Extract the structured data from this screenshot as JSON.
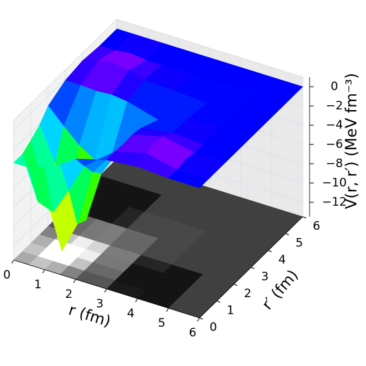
{
  "chart_data": {
    "type": "surface",
    "xlabel": "r (fm)",
    "ylabel": "r′ (fm)",
    "zlabel": "V(r, r′) (MeV fm⁻³)",
    "x": [
      0,
      0.5,
      1,
      1.5,
      2,
      3,
      4,
      5,
      6
    ],
    "y": [
      0,
      0.5,
      1,
      1.5,
      2,
      3,
      4,
      5,
      6
    ],
    "z": [
      [
        -3.4,
        -3.4,
        -2.8,
        -2.1,
        -1.0,
        -0.1,
        0.2,
        0,
        0
      ],
      [
        -3.4,
        -7.8,
        -8.4,
        -5.6,
        -2.6,
        -0.1,
        0.7,
        0,
        0
      ],
      [
        -2.8,
        -8.4,
        -13.3,
        -10.0,
        -4.1,
        -0.2,
        1.0,
        0.2,
        0
      ],
      [
        -2.1,
        -5.6,
        -10.0,
        -10.5,
        -5.1,
        -0.1,
        0.7,
        0,
        0
      ],
      [
        -1.0,
        -2.6,
        -4.1,
        -5.1,
        -4.7,
        -0.3,
        0.2,
        0,
        0
      ],
      [
        -0.1,
        -0.1,
        -0.2,
        -0.1,
        -0.3,
        -1.2,
        0,
        0,
        0
      ],
      [
        0.2,
        0.7,
        1.0,
        0.7,
        0.2,
        0,
        -0.2,
        0,
        0
      ],
      [
        0,
        0,
        0.2,
        0,
        0,
        0,
        0,
        0,
        0
      ],
      [
        0,
        0,
        0,
        0,
        0,
        0,
        0,
        0,
        0
      ]
    ],
    "xlim": [
      0,
      6
    ],
    "ylim": [
      0,
      6
    ],
    "zlim": [
      -13.5,
      1
    ],
    "xticks": [
      0,
      1,
      2,
      3,
      4,
      5,
      6
    ],
    "yticks": [
      0,
      1,
      2,
      3,
      4,
      5,
      6
    ],
    "zticks": [
      0,
      {
        "value": -2,
        "label": "−2"
      },
      {
        "value": -4,
        "label": "−4"
      },
      {
        "value": -6,
        "label": "−6"
      },
      {
        "value": -8,
        "label": "−8"
      },
      {
        "value": -10,
        "label": "−10"
      },
      {
        "value": -12,
        "label": "−12"
      }
    ],
    "colormap": "gist_rainbow",
    "floor_colormap": "gray",
    "grid": true
  }
}
